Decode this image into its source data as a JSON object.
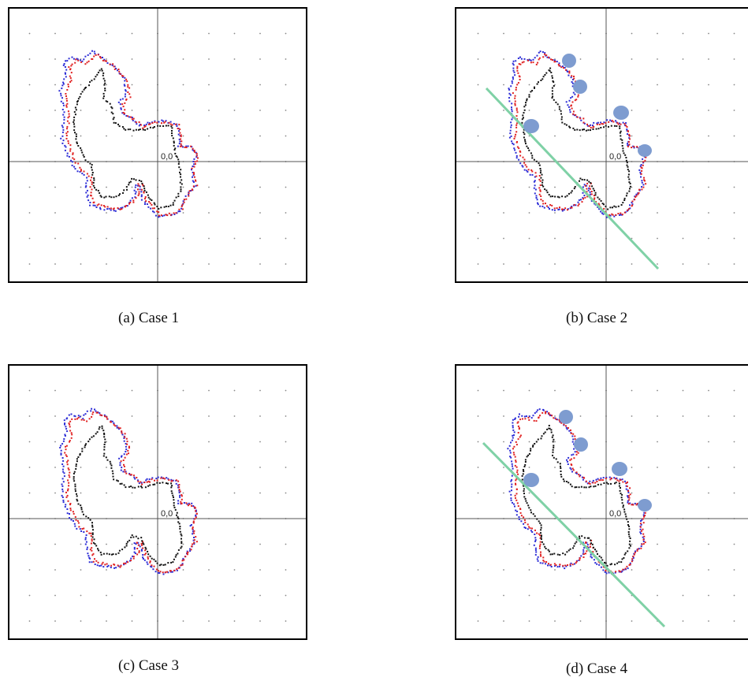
{
  "figure": {
    "panels": [
      {
        "id": "a",
        "caption": "(a) Case 1",
        "origin_label": "0,0",
        "has_line": false,
        "has_circles": false
      },
      {
        "id": "b",
        "caption": "(b) Case 2",
        "origin_label": "0,0",
        "has_line": true,
        "has_circles": true
      },
      {
        "id": "c",
        "caption": "(c) Case 3",
        "origin_label": "0,0",
        "has_line": false,
        "has_circles": false
      },
      {
        "id": "d",
        "caption": "(d) Case 4",
        "origin_label": "0,0",
        "has_line": true,
        "has_circles": true
      }
    ],
    "colors": {
      "frame": "#000000",
      "axis": "#555555",
      "grid_dot": "#888888",
      "contour_blue": "#2b2bd6",
      "contour_red": "#e02020",
      "contour_black": "#111111",
      "line": "#7fd1a6",
      "circle": "#7e9cd0"
    }
  }
}
